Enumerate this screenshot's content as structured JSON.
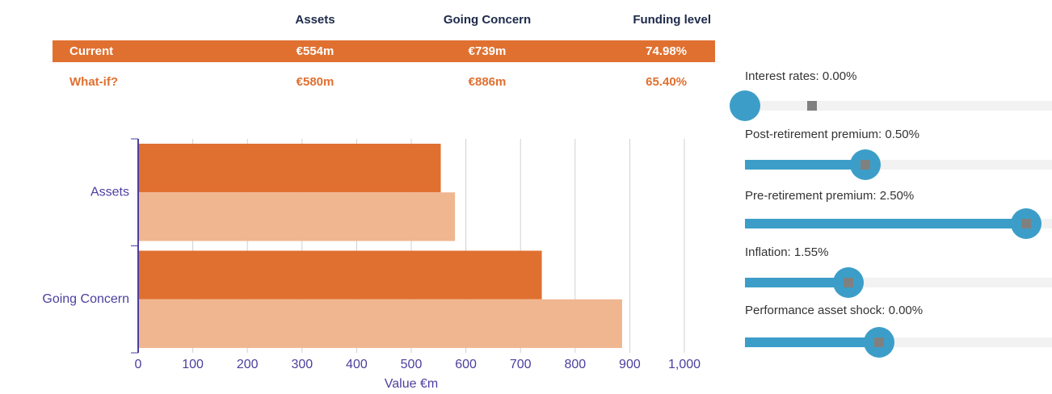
{
  "table": {
    "columns": [
      "Assets",
      "Going Concern",
      "Funding level"
    ],
    "rows": [
      {
        "label": "Current",
        "cells": [
          "€554m",
          "€739m",
          "74.98%"
        ]
      },
      {
        "label": "What-if?",
        "cells": [
          "€580m",
          "€886m",
          "65.40%"
        ]
      }
    ]
  },
  "chart_data": {
    "type": "bar",
    "orientation": "horizontal",
    "categories": [
      "Assets",
      "Going Concern"
    ],
    "series": [
      {
        "name": "Current",
        "color": "#e07030",
        "values": [
          554,
          739
        ]
      },
      {
        "name": "What-if?",
        "color": "#f0b690",
        "values": [
          580,
          886
        ]
      }
    ],
    "xlim": [
      0,
      1000
    ],
    "xticks": [
      0,
      100,
      200,
      300,
      400,
      500,
      600,
      700,
      800,
      900,
      {
        "value": 1000,
        "label": "1,000"
      }
    ],
    "x_label": "Value €m",
    "grid": true
  },
  "sliders": [
    {
      "label": "Interest rates: 0.00%"
    },
    {
      "label": "Post-retirement premium: 0.50%"
    },
    {
      "label": "Pre-retirement premium: 2.50%"
    },
    {
      "label": "Inflation: 1.55%"
    },
    {
      "label": "Performance asset shock: 0.00%"
    }
  ]
}
